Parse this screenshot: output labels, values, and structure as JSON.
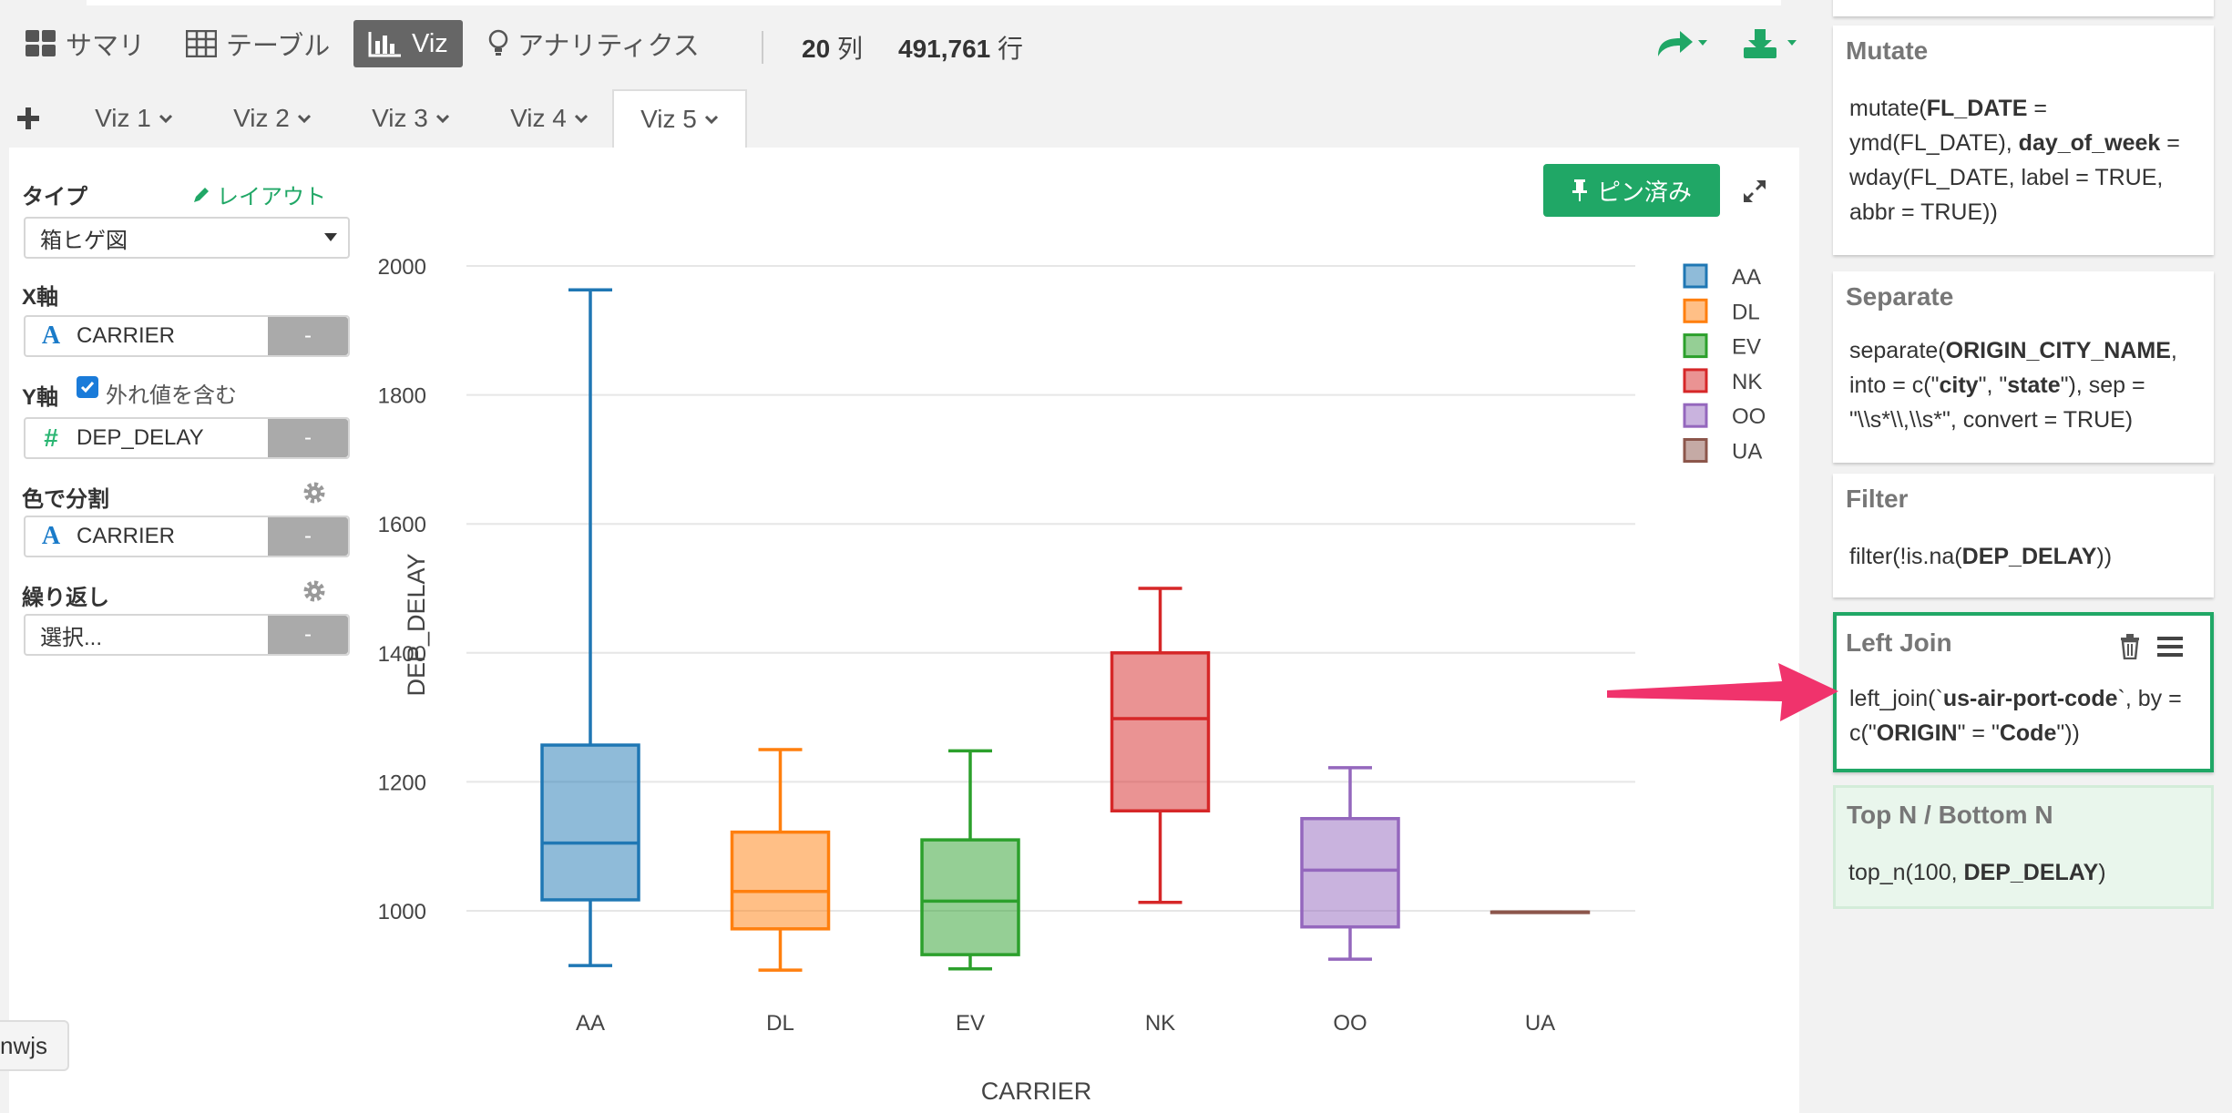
{
  "toolbar": {
    "summary": "サマリ",
    "table": "テーブル",
    "viz": "Viz",
    "analytics": "アナリティクス",
    "columns_num": "20",
    "columns_unit": "列",
    "rows_num": "491,761",
    "rows_unit": "行"
  },
  "tabs": [
    "Viz 1",
    "Viz 2",
    "Viz 3",
    "Viz 4",
    "Viz 5"
  ],
  "config": {
    "type_label": "タイプ",
    "layout_link": "レイアウト",
    "type_value": "箱ヒゲ図",
    "x_label": "X軸",
    "x_value": "CARRIER",
    "y_label": "Y軸",
    "outlier_label": "外れ値を含む",
    "y_value": "DEP_DELAY",
    "color_label": "色で分割",
    "color_value": "CARRIER",
    "repeat_label": "繰り返し",
    "repeat_value": "選択...",
    "minus": "-"
  },
  "pin_button": "ピン済み",
  "tooltip_text": "nwjs",
  "chart_data": {
    "type": "box",
    "xlabel": "CARRIER",
    "ylabel": "DEP_DELAY",
    "ylim": [
      900,
      2050
    ],
    "yticks": [
      1000,
      1200,
      1400,
      1600,
      1800,
      2000
    ],
    "legend_position": "top-right",
    "series": [
      {
        "name": "AA",
        "color": "#1f77b4",
        "min": 915,
        "q1": 1017,
        "median": 1105,
        "q3": 1257,
        "max": 1963
      },
      {
        "name": "DL",
        "color": "#ff7f0e",
        "min": 908,
        "q1": 972,
        "median": 1030,
        "q3": 1122,
        "max": 1250
      },
      {
        "name": "EV",
        "color": "#2ca02c",
        "min": 910,
        "q1": 932,
        "median": 1015,
        "q3": 1110,
        "max": 1248
      },
      {
        "name": "NK",
        "color": "#d62728",
        "min": 1013,
        "q1": 1155,
        "median": 1298,
        "q3": 1400,
        "max": 1500
      },
      {
        "name": "OO",
        "color": "#9467bd",
        "min": 925,
        "q1": 975,
        "median": 1063,
        "q3": 1143,
        "max": 1222
      },
      {
        "name": "UA",
        "color": "#8c564b",
        "min": 998,
        "q1": 998,
        "median": 998,
        "q3": 998,
        "max": 998
      }
    ]
  },
  "steps": [
    {
      "title": "Mutate",
      "parts": [
        [
          "mutate(",
          ""
        ],
        [
          "FL_DATE",
          "b"
        ],
        [
          " = ymd(FL_DATE), ",
          ""
        ],
        [
          "day_of_week",
          "b"
        ],
        [
          " = wday(FL_DATE, label = TRUE, abbr = TRUE))",
          ""
        ]
      ]
    },
    {
      "title": "Separate",
      "parts": [
        [
          "separate(",
          ""
        ],
        [
          "ORIGIN_CITY_NAME",
          "b"
        ],
        [
          ", into = c(\"",
          ""
        ],
        [
          "city",
          "b"
        ],
        [
          "\", \"",
          ""
        ],
        [
          "state",
          "b"
        ],
        [
          "\"), sep = \"\\\\s*\\\\,\\\\s*\", convert = TRUE)",
          ""
        ]
      ]
    },
    {
      "title": "Filter",
      "parts": [
        [
          "filter(!is.na(",
          ""
        ],
        [
          "DEP_DELAY",
          "b"
        ],
        [
          "))",
          ""
        ]
      ]
    },
    {
      "title": "Left Join",
      "parts": [
        [
          "left_join(`",
          ""
        ],
        [
          "us-air-port-code",
          "b"
        ],
        [
          "`, by = c(\"",
          ""
        ],
        [
          "ORIGIN",
          "b"
        ],
        [
          "\" = \"",
          ""
        ],
        [
          "Code",
          "b"
        ],
        [
          "\"))",
          ""
        ]
      ]
    },
    {
      "title": "Top N / Bottom N",
      "parts": [
        [
          "top_n(100, ",
          ""
        ],
        [
          "DEP_DELAY",
          "b"
        ],
        [
          ")",
          ""
        ]
      ]
    }
  ],
  "colors": {
    "accent": "#20a766",
    "arrow": "#f0336c"
  }
}
